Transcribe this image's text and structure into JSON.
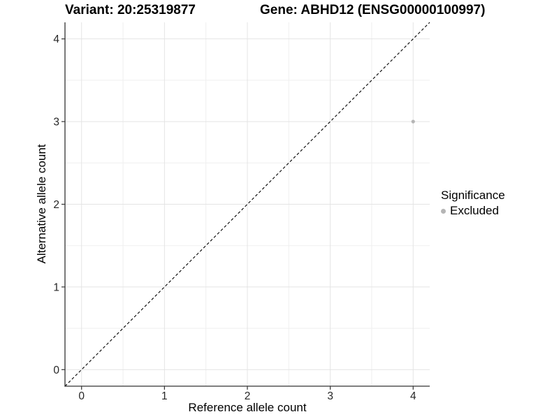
{
  "chart_data": {
    "type": "scatter",
    "title_left": "Variant: 20:25319877",
    "title_right": "Gene: ABHD12 (ENSG00000100997)",
    "xlabel": "Reference allele count",
    "ylabel": "Alternative allele count",
    "xlim": [
      -0.2,
      4.2
    ],
    "ylim": [
      -0.2,
      4.2
    ],
    "xticks": [
      0,
      1,
      2,
      3,
      4
    ],
    "yticks": [
      0,
      1,
      2,
      3,
      4
    ],
    "minor_grid_step": 0.5,
    "grid": true,
    "legend_position": "right",
    "series": [
      {
        "name": "Excluded",
        "color": "#b5b5b5",
        "marker": "circle",
        "points": [
          {
            "x": 4,
            "y": 3
          }
        ]
      }
    ],
    "reference_line": {
      "kind": "identity y=x",
      "style": "dashed",
      "color": "#000000",
      "from": [
        -0.2,
        -0.2
      ],
      "to": [
        4.2,
        4.2
      ]
    },
    "legend": {
      "title": "Significance",
      "entries": [
        {
          "label": "Excluded",
          "color": "#b5b5b5",
          "marker": "circle"
        }
      ]
    },
    "colors": {
      "background": "#ffffff",
      "grid_major": "#e4e4e4",
      "grid_minor": "#efefef",
      "axis_line": "#333333",
      "tick_label": "#262626",
      "point": "#b5b5b5",
      "dashed_line": "#000000"
    }
  }
}
